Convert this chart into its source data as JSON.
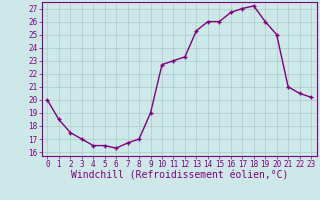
{
  "x": [
    0,
    1,
    2,
    3,
    4,
    5,
    6,
    7,
    8,
    9,
    10,
    11,
    12,
    13,
    14,
    15,
    16,
    17,
    18,
    19,
    20,
    21,
    22,
    23
  ],
  "y": [
    20.0,
    18.5,
    17.5,
    17.0,
    16.5,
    16.5,
    16.3,
    16.7,
    17.0,
    19.0,
    22.7,
    23.0,
    23.3,
    25.3,
    26.0,
    26.0,
    26.7,
    27.0,
    27.2,
    26.0,
    25.0,
    21.0,
    20.5,
    20.2
  ],
  "line_color": "#800080",
  "marker": "+",
  "marker_color": "#800080",
  "bg_color": "#cce8e8",
  "grid_color": "#aacccc",
  "xlabel": "Windchill (Refroidissement éolien,°C)",
  "ylabel": "",
  "ylim": [
    15.7,
    27.5
  ],
  "xlim": [
    -0.5,
    23.5
  ],
  "yticks": [
    16,
    17,
    18,
    19,
    20,
    21,
    22,
    23,
    24,
    25,
    26,
    27
  ],
  "xticks": [
    0,
    1,
    2,
    3,
    4,
    5,
    6,
    7,
    8,
    9,
    10,
    11,
    12,
    13,
    14,
    15,
    16,
    17,
    18,
    19,
    20,
    21,
    22,
    23
  ],
  "tick_label_fontsize": 5.5,
  "xlabel_fontsize": 7.0,
  "line_width": 1.0,
  "marker_size": 3.5
}
